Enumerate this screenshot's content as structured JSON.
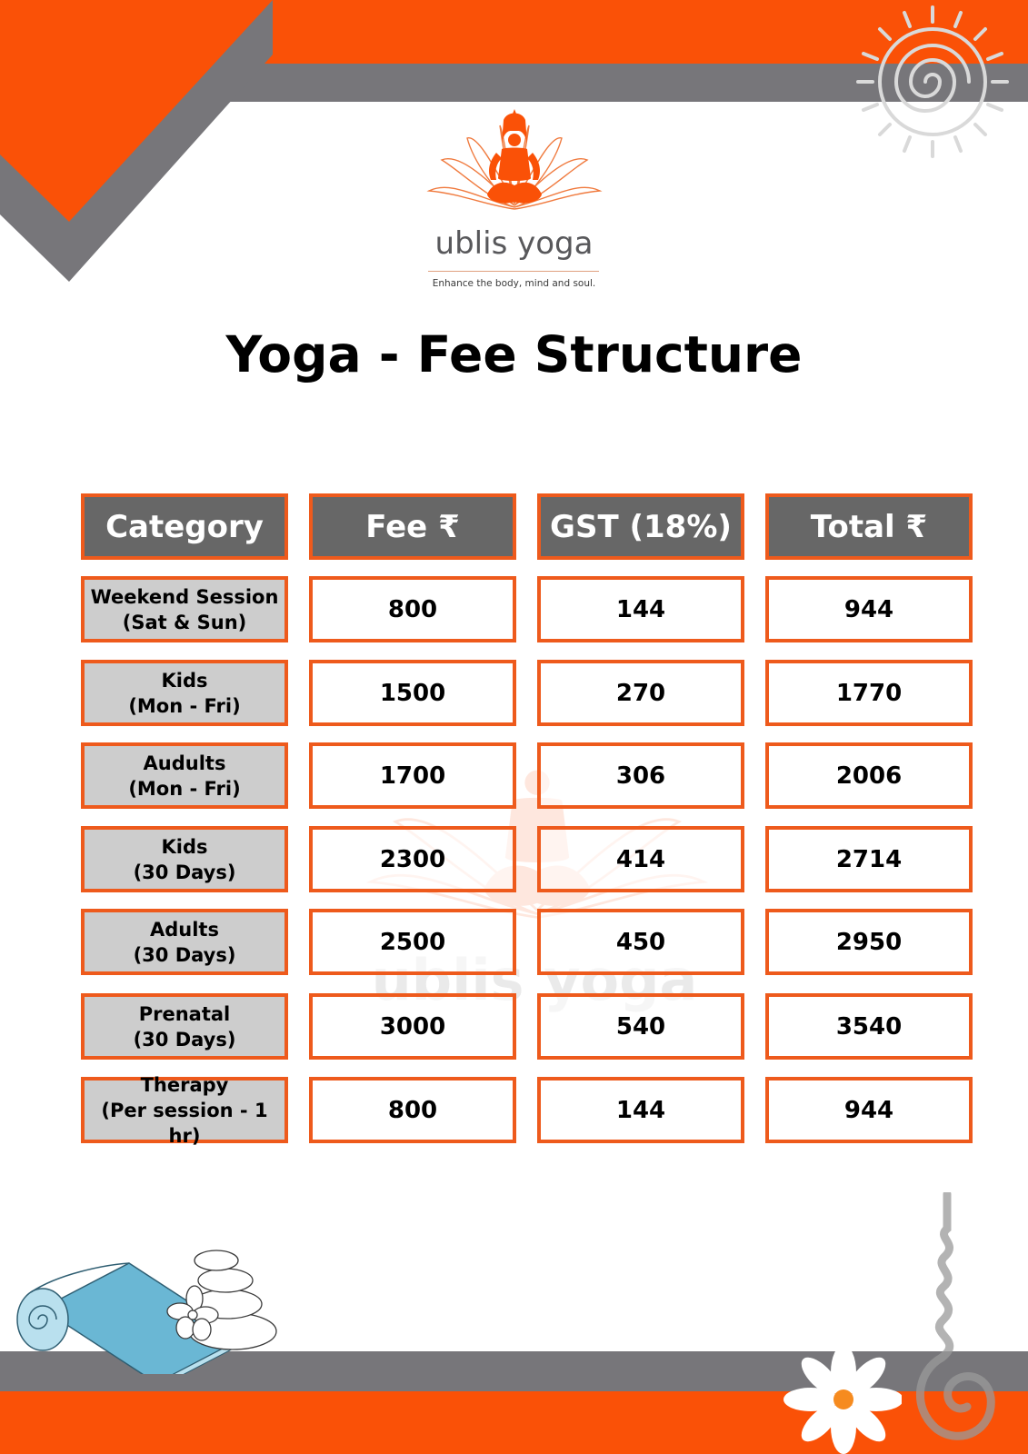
{
  "brand": {
    "name": "ublis yoga",
    "tagline": "Enhance the body, mind and soul.",
    "logo_icon": "meditating-yogi-lotus-icon",
    "colors": {
      "orange": "#fa5107",
      "gray": "#77767a",
      "header_cell": "#676767",
      "category_cell": "#cdcdcd"
    }
  },
  "title": "Yoga - Fee Structure",
  "table": {
    "headers": [
      "Category",
      "Fee ₹",
      "GST (18%)",
      "Total  ₹"
    ],
    "rows": [
      {
        "category": "Weekend Session\n(Sat & Sun)",
        "fee": "800",
        "gst": "144",
        "total": "944"
      },
      {
        "category": "Kids\n(Mon - Fri)",
        "fee": "1500",
        "gst": "270",
        "total": "1770"
      },
      {
        "category": "Audults\n(Mon - Fri)",
        "fee": "1700",
        "gst": "306",
        "total": "2006"
      },
      {
        "category": "Kids\n(30 Days)",
        "fee": "2300",
        "gst": "414",
        "total": "2714"
      },
      {
        "category": "Adults\n(30 Days)",
        "fee": "2500",
        "gst": "450",
        "total": "2950"
      },
      {
        "category": "Prenatal\n(30 Days)",
        "fee": "3000",
        "gst": "540",
        "total": "3540"
      },
      {
        "category": "Therapy\n(Per session - 1 hr)",
        "fee": "800",
        "gst": "144",
        "total": "944"
      }
    ]
  },
  "watermark": "ublis yoga"
}
